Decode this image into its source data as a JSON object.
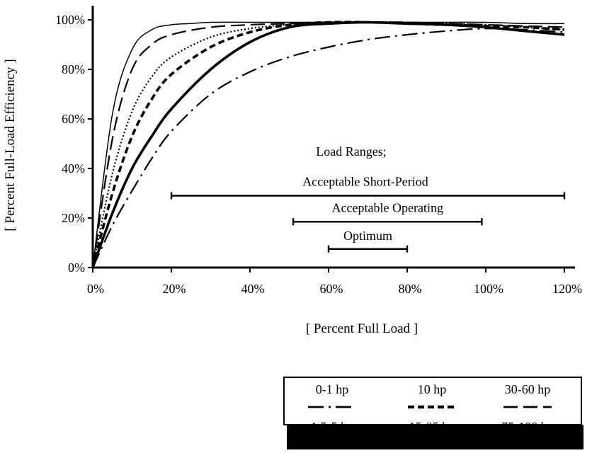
{
  "chart_data": {
    "type": "line",
    "title": "",
    "xlabel": "[ Percent Full Load  ]",
    "ylabel": "[ Percent Full-Load Efficiency ]",
    "xlim": [
      0,
      120
    ],
    "ylim": [
      0,
      100
    ],
    "x_ticks": [
      0,
      20,
      40,
      60,
      80,
      100,
      120
    ],
    "y_ticks": [
      0,
      20,
      40,
      60,
      80,
      100
    ],
    "x_tick_labels": [
      "0%",
      "20%",
      "40%",
      "60%",
      "80%",
      "100%",
      "120%"
    ],
    "y_tick_labels": [
      "0%",
      "20%",
      "40%",
      "60%",
      "80%",
      "100%"
    ],
    "grid": false,
    "legend_position": "bottom-right",
    "series": [
      {
        "name": "0-1 hp",
        "style": "dash-dot",
        "x": [
          0,
          5,
          10,
          15,
          20,
          30,
          40,
          50,
          60,
          70,
          80,
          90,
          100,
          110,
          120
        ],
        "y": [
          0,
          17,
          31,
          44,
          55,
          70,
          79,
          85,
          89,
          92,
          94,
          95.5,
          96.5,
          96,
          95
        ]
      },
      {
        "name": "10 hp",
        "style": "heavy-dash",
        "x": [
          0,
          5,
          10,
          15,
          20,
          30,
          40,
          50,
          60,
          70,
          80,
          90,
          100,
          110,
          120
        ],
        "y": [
          0,
          30,
          53,
          68,
          78,
          89,
          95,
          98,
          99,
          99,
          98.5,
          98,
          97.5,
          97,
          96
        ]
      },
      {
        "name": "30-60 hp",
        "style": "long-dash",
        "x": [
          0,
          5,
          10,
          15,
          20,
          30,
          40,
          50,
          60,
          70,
          80,
          90,
          100,
          110,
          120
        ],
        "y": [
          0,
          52,
          80,
          90,
          94,
          97,
          98,
          98.5,
          99,
          99,
          99,
          98.5,
          98,
          97.5,
          97
        ]
      },
      {
        "name": "1.5-5 hp",
        "style": "heavy-solid",
        "x": [
          0,
          5,
          10,
          15,
          20,
          30,
          40,
          50,
          60,
          70,
          80,
          90,
          100,
          110,
          120
        ],
        "y": [
          0,
          22,
          40,
          53,
          64,
          80,
          91,
          97,
          98.5,
          99,
          98.5,
          98,
          97,
          95.5,
          94
        ]
      },
      {
        "name": "15-25 hp",
        "style": "dotted",
        "x": [
          0,
          5,
          10,
          15,
          20,
          30,
          40,
          50,
          60,
          70,
          80,
          90,
          100,
          110,
          120
        ],
        "y": [
          0,
          38,
          63,
          77,
          85,
          93,
          96.5,
          98,
          98.5,
          99,
          99,
          98.5,
          98,
          97,
          96
        ]
      },
      {
        "name": "75-100 hp",
        "style": "thin-solid",
        "x": [
          0,
          5,
          10,
          15,
          20,
          25,
          30,
          40,
          50,
          60,
          70,
          80,
          90,
          100,
          110,
          120
        ],
        "y": [
          0,
          62,
          88,
          96,
          98,
          98.5,
          99,
          99,
          99,
          99,
          99,
          99,
          99,
          99,
          98.5,
          98.5
        ]
      }
    ],
    "annotations": {
      "heading": "Load Ranges;",
      "ranges": [
        {
          "label": "Acceptable Short-Period",
          "from": 20,
          "to": 120,
          "y": 29
        },
        {
          "label": "Acceptable Operating",
          "from": 51,
          "to": 99,
          "y": 18.5
        },
        {
          "label": "Optimum",
          "from": 60,
          "to": 80,
          "y": 7.5
        }
      ]
    }
  }
}
